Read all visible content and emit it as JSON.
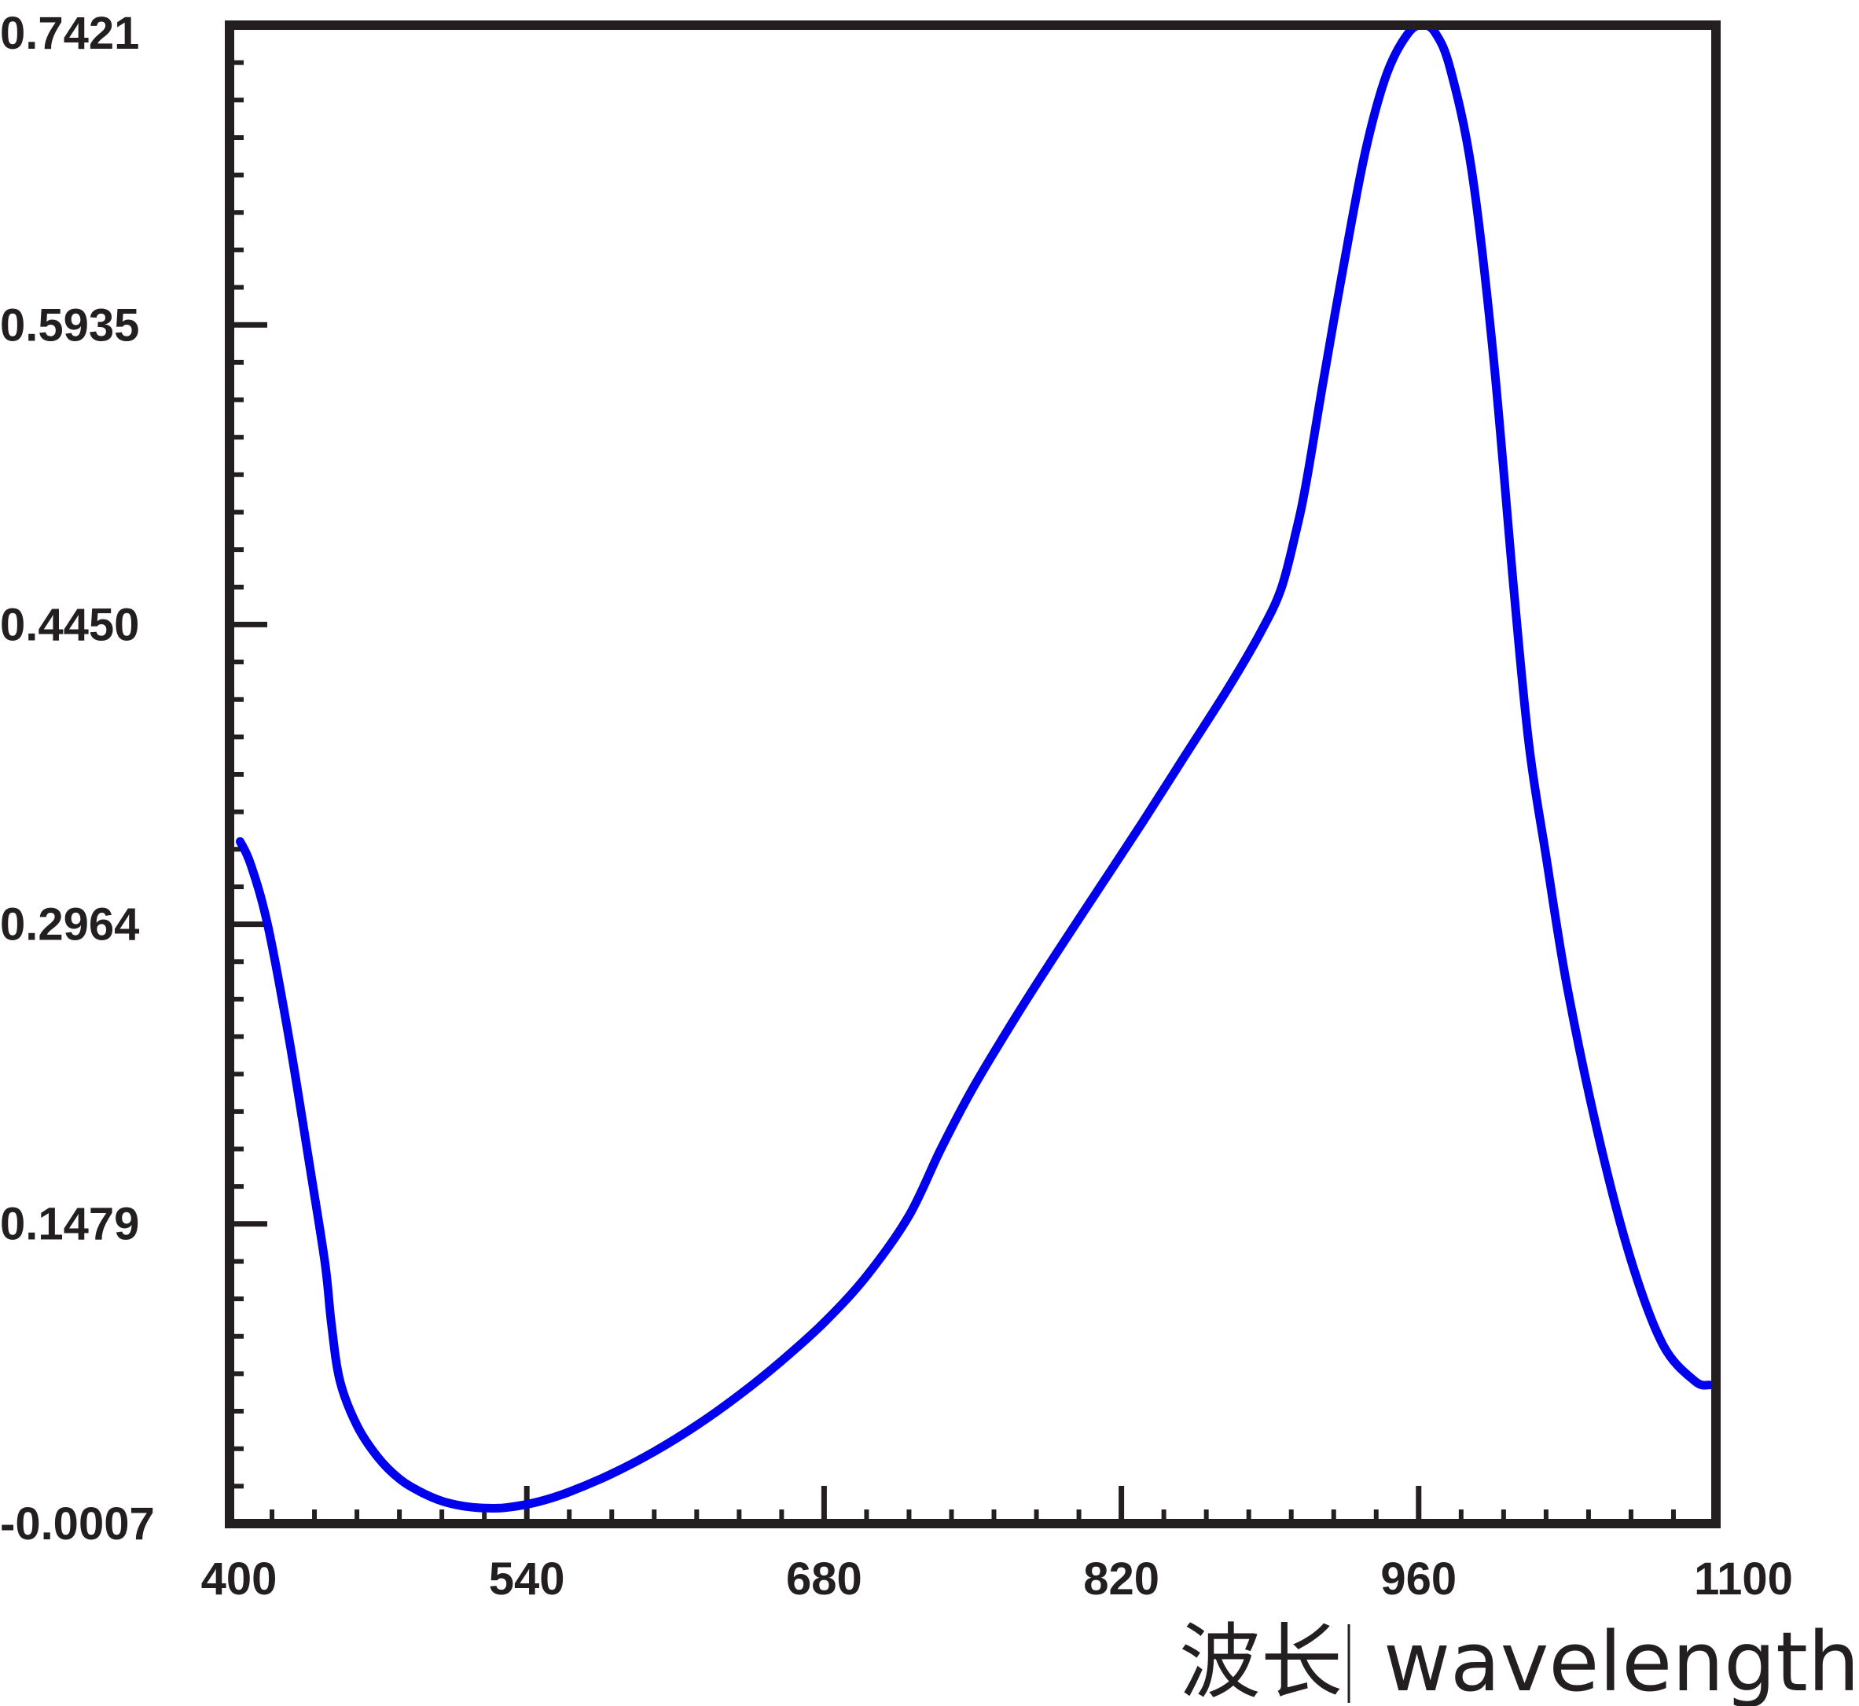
{
  "chart_data": {
    "type": "line",
    "title": "",
    "xlabel": "波长",
    "xlabel_en": "wavelength",
    "ylabel": "",
    "xlim": [
      400,
      1100
    ],
    "ylim": [
      -0.0007,
      0.7421
    ],
    "x_ticks": [
      400,
      540,
      680,
      820,
      960,
      1100
    ],
    "x_tick_labels": [
      "400",
      "540",
      "680",
      "820",
      "960",
      "1100"
    ],
    "y_ticks": [
      -0.0007,
      0.1479,
      0.2964,
      0.445,
      0.5935,
      0.7421
    ],
    "y_tick_labels": [
      "-0.0007",
      "0.1479",
      "0.2964",
      "0.4450",
      "0.5935",
      "0.7421"
    ],
    "grid": false,
    "legend": "none",
    "series": [
      {
        "color": "#0000ee",
        "points": [
          [
            405,
            0.3374
          ],
          [
            410,
            0.326
          ],
          [
            418,
            0.296
          ],
          [
            428,
            0.24
          ],
          [
            438,
            0.175
          ],
          [
            445,
            0.128
          ],
          [
            448,
            0.098
          ],
          [
            452,
            0.07
          ],
          [
            460,
            0.048
          ],
          [
            470,
            0.032
          ],
          [
            480,
            0.0215
          ],
          [
            490,
            0.015
          ],
          [
            500,
            0.0105
          ],
          [
            510,
            0.008
          ],
          [
            520,
            0.007
          ],
          [
            530,
            0.0072
          ],
          [
            545,
            0.01
          ],
          [
            560,
            0.015
          ],
          [
            580,
            0.024
          ],
          [
            600,
            0.035
          ],
          [
            620,
            0.048
          ],
          [
            640,
            0.063
          ],
          [
            660,
            0.08
          ],
          [
            680,
            0.099
          ],
          [
            700,
            0.122
          ],
          [
            720,
            0.152
          ],
          [
            735,
            0.185
          ],
          [
            750,
            0.215
          ],
          [
            770,
            0.25
          ],
          [
            790,
            0.283
          ],
          [
            810,
            0.315
          ],
          [
            830,
            0.347
          ],
          [
            850,
            0.38
          ],
          [
            870,
            0.413
          ],
          [
            885,
            0.44
          ],
          [
            895,
            0.462
          ],
          [
            902,
            0.49
          ],
          [
            907,
            0.515
          ],
          [
            915,
            0.565
          ],
          [
            925,
            0.625
          ],
          [
            935,
            0.68
          ],
          [
            945,
            0.718
          ],
          [
            955,
            0.738
          ],
          [
            962,
            0.7421
          ],
          [
            968,
            0.738
          ],
          [
            975,
            0.72
          ],
          [
            985,
            0.67
          ],
          [
            995,
            0.58
          ],
          [
            1005,
            0.46
          ],
          [
            1012,
            0.385
          ],
          [
            1020,
            0.33
          ],
          [
            1030,
            0.265
          ],
          [
            1045,
            0.19
          ],
          [
            1060,
            0.13
          ],
          [
            1075,
            0.088
          ],
          [
            1090,
            0.07
          ],
          [
            1097,
            0.068
          ]
        ]
      }
    ]
  }
}
